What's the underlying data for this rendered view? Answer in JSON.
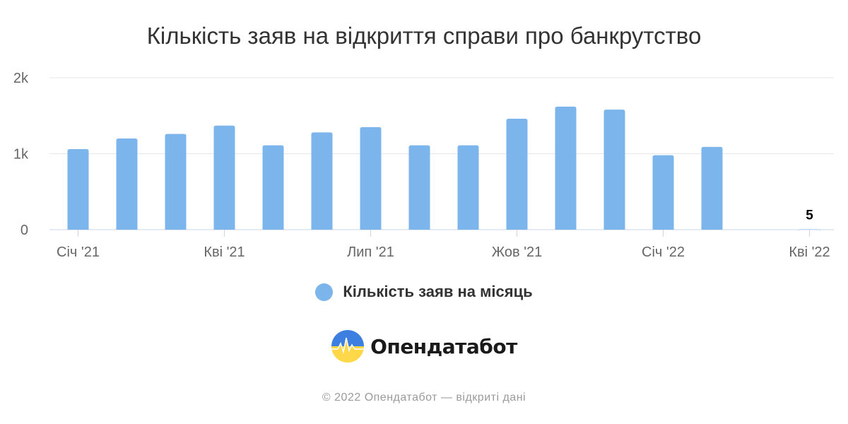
{
  "chart_data": {
    "type": "bar",
    "title": "Кількість заяв на відкриття справи про банкрутство",
    "x": [
      "2021-01",
      "2021-02",
      "2021-03",
      "2021-04",
      "2021-05",
      "2021-06",
      "2021-07",
      "2021-08",
      "2021-09",
      "2021-10",
      "2021-11",
      "2021-12",
      "2022-01",
      "2022-02",
      "2022-03",
      "2022-04"
    ],
    "series": [
      {
        "name": "Кількість заяв на місяць",
        "values": [
          1060,
          1200,
          1260,
          1370,
          1110,
          1280,
          1350,
          1110,
          1110,
          1460,
          1620,
          1580,
          980,
          1090,
          0,
          5
        ],
        "color": "#7cb5ec"
      }
    ],
    "ylim": [
      0,
      2000
    ],
    "y_ticks": [
      {
        "value": 0,
        "label": "0"
      },
      {
        "value": 1000,
        "label": "1k"
      },
      {
        "value": 2000,
        "label": "2k"
      }
    ],
    "x_ticks": [
      {
        "index": 0,
        "label": "Січ '21"
      },
      {
        "index": 3,
        "label": "Кві '21"
      },
      {
        "index": 6,
        "label": "Лип '21"
      },
      {
        "index": 9,
        "label": "Жов '21"
      },
      {
        "index": 12,
        "label": "Січ '22"
      },
      {
        "index": 15,
        "label": "Кві '22"
      }
    ],
    "data_labels": [
      {
        "index": 15,
        "label": "5"
      }
    ],
    "grid": true,
    "legend": "bottom-center"
  },
  "brand": {
    "name": "Опендатабот",
    "logo_icon": "opendatabot-logo-icon",
    "colors": [
      "#2f6fd6",
      "#ffd84a"
    ]
  },
  "footer": {
    "text": "© 2022 Опендатабот — відкриті дані"
  }
}
